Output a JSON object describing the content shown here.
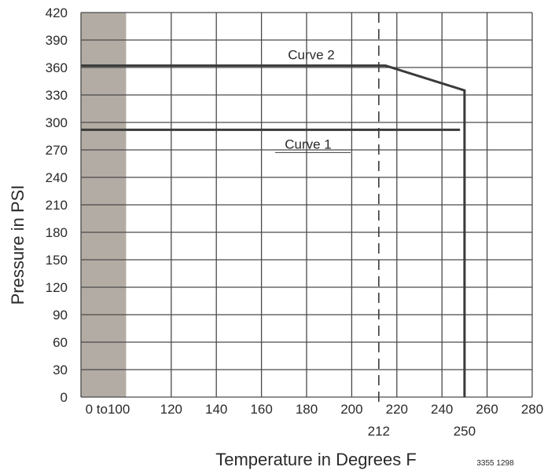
{
  "chart_data": {
    "type": "line",
    "ylabel": "Pressure in PSI",
    "xlabel": "Temperature in Degrees F",
    "xlim": [
      80,
      280
    ],
    "ylim": [
      0,
      420
    ],
    "x_tick_labels": [
      {
        "value": 80,
        "label": "0 to100"
      },
      {
        "value": 120,
        "label": "120"
      },
      {
        "value": 140,
        "label": "140"
      },
      {
        "value": 160,
        "label": "160"
      },
      {
        "value": 180,
        "label": "180"
      },
      {
        "value": 200,
        "label": "200"
      },
      {
        "value": 220,
        "label": "220"
      },
      {
        "value": 240,
        "label": "240"
      },
      {
        "value": 260,
        "label": "260"
      },
      {
        "value": 280,
        "label": "280"
      }
    ],
    "y_ticks": [
      0,
      30,
      60,
      90,
      120,
      150,
      180,
      210,
      240,
      270,
      300,
      330,
      360,
      390,
      420
    ],
    "series": [
      {
        "name": "Curve 2",
        "x": [
          80,
          215,
          250,
          250
        ],
        "y": [
          362,
          362,
          335,
          0
        ]
      },
      {
        "name": "Curve 1",
        "x": [
          80,
          248
        ],
        "y": [
          292,
          292
        ]
      }
    ],
    "shaded_region": {
      "x": [
        80,
        100
      ],
      "label": "0 to100"
    },
    "annotations": [
      {
        "x": 212,
        "label": "212",
        "style": "dashed"
      },
      {
        "x": 250,
        "label": "250",
        "style": "solid"
      }
    ],
    "grid": true,
    "figure_code": "3355 1298"
  },
  "colors": {
    "curve": "#3a3a3a",
    "grid": "#4a4a4a",
    "shade": "#b3aca4"
  }
}
